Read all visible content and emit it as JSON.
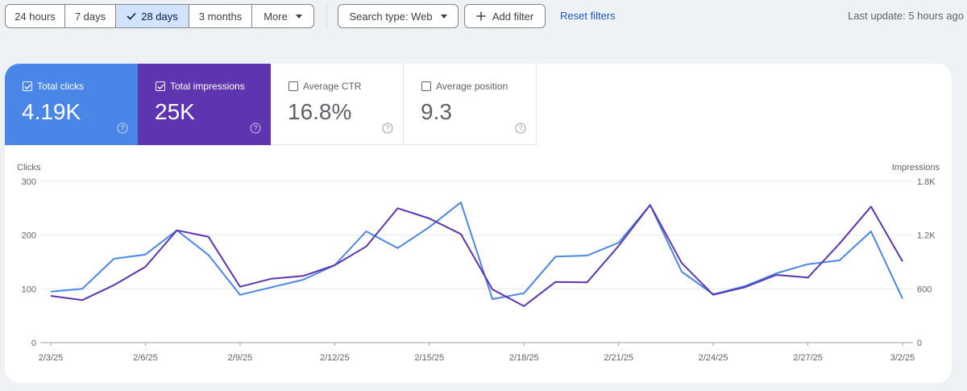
{
  "toolbar": {
    "ranges": [
      {
        "label": "24 hours",
        "selected": false
      },
      {
        "label": "7 days",
        "selected": false
      },
      {
        "label": "28 days",
        "selected": true
      },
      {
        "label": "3 months",
        "selected": false
      },
      {
        "label": "More",
        "selected": false
      }
    ],
    "search_type": "Search type: Web",
    "add_filter": "Add filter",
    "reset_filters": "Reset filters",
    "last_update": "Last update: 5 hours ago"
  },
  "metrics": [
    {
      "label": "Total clicks",
      "value": "4.19K",
      "checked": true,
      "color": "#4a86e8"
    },
    {
      "label": "Total impressions",
      "value": "25K",
      "checked": true,
      "color": "#5e35b1"
    },
    {
      "label": "Average CTR",
      "value": "16.8%",
      "checked": false
    },
    {
      "label": "Average position",
      "value": "9.3",
      "checked": false
    }
  ],
  "icons": {
    "check": "check-icon",
    "dropdown": "chevron-down-icon",
    "add": "plus-icon",
    "help": "help-circle-icon"
  },
  "chart_data": {
    "type": "line",
    "ylabel": "Clicks",
    "y2label": "Impressions",
    "ylim": [
      0,
      300
    ],
    "y2lim": [
      0,
      1800
    ],
    "yticks": [
      "0",
      "100",
      "200",
      "300"
    ],
    "y2ticks": [
      "0",
      "600",
      "1.2K",
      "1.8K"
    ],
    "xtick_labels": [
      "2/3/25",
      "2/6/25",
      "2/9/25",
      "2/12/25",
      "2/15/25",
      "2/18/25",
      "2/21/25",
      "2/24/25",
      "2/27/25",
      "3/2/25"
    ],
    "x": [
      "2/3/25",
      "2/4/25",
      "2/5/25",
      "2/6/25",
      "2/7/25",
      "2/8/25",
      "2/9/25",
      "2/10/25",
      "2/11/25",
      "2/12/25",
      "2/13/25",
      "2/14/25",
      "2/15/25",
      "2/16/25",
      "2/17/25",
      "2/18/25",
      "2/19/25",
      "2/20/25",
      "2/21/25",
      "2/22/25",
      "2/23/25",
      "2/24/25",
      "2/25/25",
      "2/26/25",
      "2/27/25",
      "2/28/25",
      "3/1/25",
      "3/2/25"
    ],
    "grid": true,
    "series": [
      {
        "name": "Clicks",
        "axis": "left",
        "color": "#4a86e8",
        "values": [
          95,
          100,
          156,
          164,
          209,
          163,
          89,
          103,
          117,
          144,
          207,
          176,
          215,
          261,
          81,
          92,
          160,
          162,
          186,
          256,
          132,
          90,
          105,
          129,
          146,
          153,
          207,
          82
        ]
      },
      {
        "name": "Impressions",
        "axis": "right",
        "color": "#5e35b1",
        "values": [
          522,
          474,
          642,
          846,
          1254,
          1182,
          624,
          714,
          744,
          864,
          1074,
          1500,
          1386,
          1212,
          594,
          408,
          678,
          672,
          1080,
          1536,
          888,
          534,
          618,
          756,
          726,
          1104,
          1518,
          906
        ]
      }
    ]
  }
}
